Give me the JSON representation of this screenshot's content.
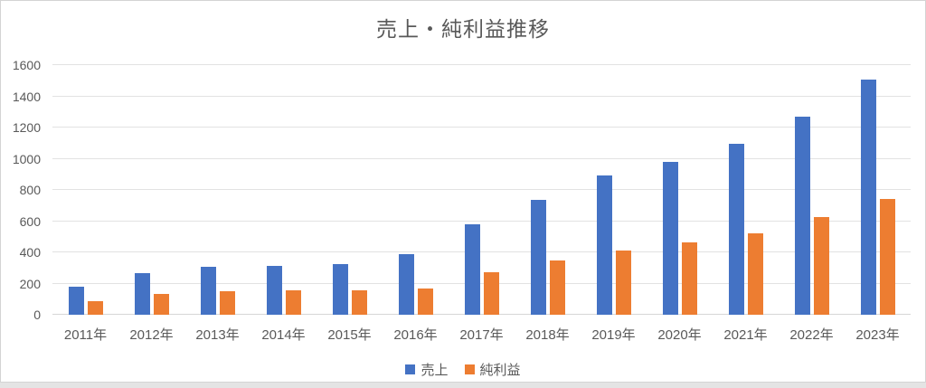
{
  "page": {
    "background_color": "#ffffff",
    "frame_border_color": "#d4d4d4",
    "bottom_strip_color": "#e4e4e4"
  },
  "chart_data": {
    "type": "bar",
    "title": "売上・純利益推移",
    "categories": [
      "2011年",
      "2012年",
      "2013年",
      "2014年",
      "2015年",
      "2016年",
      "2017年",
      "2018年",
      "2019年",
      "2020年",
      "2021年",
      "2022年",
      "2023年"
    ],
    "series": [
      {
        "name": "売上",
        "color": "#4472C4",
        "values": [
          180,
          265,
          310,
          315,
          325,
          390,
          580,
          735,
          890,
          980,
          1095,
          1270,
          1505
        ]
      },
      {
        "name": "純利益",
        "color": "#ED7D31",
        "values": [
          85,
          135,
          150,
          155,
          155,
          170,
          270,
          350,
          410,
          465,
          520,
          625,
          745
        ]
      }
    ],
    "y_axis": {
      "min": 0,
      "max": 1600,
      "step": 200,
      "ticks": [
        "0",
        "200",
        "400",
        "600",
        "800",
        "1000",
        "1200",
        "1400",
        "1600"
      ]
    },
    "x_axis_label": "",
    "y_axis_label": "",
    "legend_position": "bottom",
    "grid": "horizontal",
    "colors": {
      "grid_line": "#e2e2e2",
      "axis_line": "#d6d6d6",
      "text": "#595959"
    }
  }
}
